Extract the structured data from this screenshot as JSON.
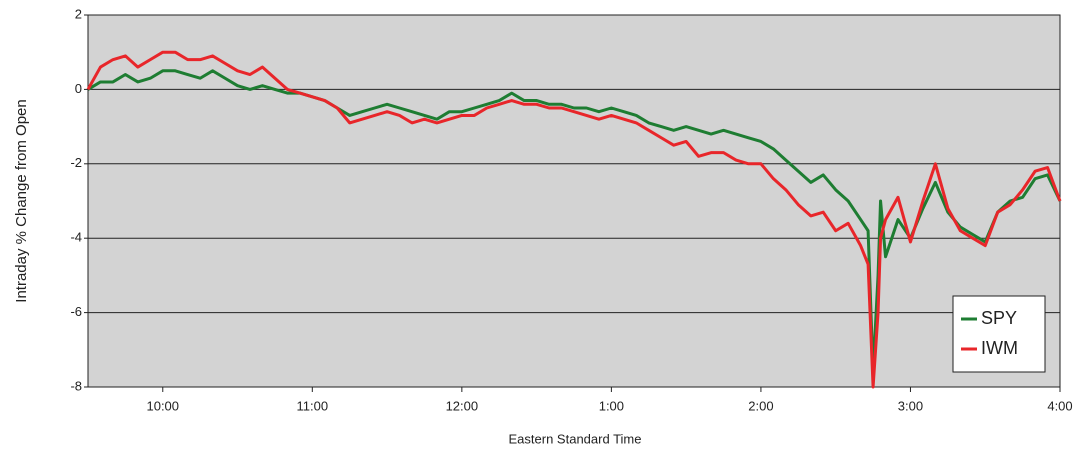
{
  "chart_data": {
    "type": "line",
    "xlabel": "Eastern Standard Time",
    "ylabel": "Intraday % Change from Open",
    "x": [
      570,
      575,
      580,
      585,
      590,
      595,
      600,
      605,
      610,
      615,
      620,
      625,
      630,
      635,
      640,
      645,
      650,
      655,
      660,
      665,
      670,
      675,
      680,
      685,
      690,
      695,
      700,
      705,
      710,
      715,
      720,
      725,
      730,
      735,
      740,
      745,
      750,
      755,
      760,
      765,
      770,
      775,
      780,
      785,
      790,
      795,
      800,
      805,
      810,
      815,
      820,
      825,
      830,
      835,
      840,
      845,
      850,
      855,
      860,
      865,
      870,
      875,
      880,
      883,
      885,
      887,
      888,
      890,
      895,
      900,
      905,
      910,
      915,
      920,
      925,
      930,
      935,
      940,
      945,
      950,
      955,
      960
    ],
    "series": [
      {
        "name": "SPY",
        "color": "#1e7d32",
        "values": [
          0,
          0.2,
          0.2,
          0.4,
          0.2,
          0.3,
          0.5,
          0.5,
          0.4,
          0.3,
          0.5,
          0.3,
          0.1,
          0.0,
          0.1,
          0.0,
          -0.1,
          -0.1,
          -0.2,
          -0.3,
          -0.5,
          -0.7,
          -0.6,
          -0.5,
          -0.4,
          -0.5,
          -0.6,
          -0.7,
          -0.8,
          -0.6,
          -0.6,
          -0.5,
          -0.4,
          -0.3,
          -0.1,
          -0.3,
          -0.3,
          -0.4,
          -0.4,
          -0.5,
          -0.5,
          -0.6,
          -0.5,
          -0.6,
          -0.7,
          -0.9,
          -1.0,
          -1.1,
          -1.0,
          -1.1,
          -1.2,
          -1.1,
          -1.2,
          -1.3,
          -1.4,
          -1.6,
          -1.9,
          -2.2,
          -2.5,
          -2.3,
          -2.7,
          -3.0,
          -3.5,
          -3.8,
          -7.6,
          -5.0,
          -3.0,
          -4.5,
          -3.5,
          -4.0,
          -3.2,
          -2.5,
          -3.3,
          -3.7,
          -3.9,
          -4.1,
          -3.3,
          -3.0,
          -2.9,
          -2.4,
          -2.3,
          -3.0
        ]
      },
      {
        "name": "IWM",
        "color": "#e8262a",
        "values": [
          0,
          0.6,
          0.8,
          0.9,
          0.6,
          0.8,
          1.0,
          1.0,
          0.8,
          0.8,
          0.9,
          0.7,
          0.5,
          0.4,
          0.6,
          0.3,
          0.0,
          -0.1,
          -0.2,
          -0.3,
          -0.5,
          -0.9,
          -0.8,
          -0.7,
          -0.6,
          -0.7,
          -0.9,
          -0.8,
          -0.9,
          -0.8,
          -0.7,
          -0.7,
          -0.5,
          -0.4,
          -0.3,
          -0.4,
          -0.4,
          -0.5,
          -0.5,
          -0.6,
          -0.7,
          -0.8,
          -0.7,
          -0.8,
          -0.9,
          -1.1,
          -1.3,
          -1.5,
          -1.4,
          -1.8,
          -1.7,
          -1.7,
          -1.9,
          -2.0,
          -2.0,
          -2.4,
          -2.7,
          -3.1,
          -3.4,
          -3.3,
          -3.8,
          -3.6,
          -4.2,
          -4.7,
          -8.0,
          -6.0,
          -4.0,
          -3.5,
          -2.9,
          -4.1,
          -3.0,
          -2.0,
          -3.2,
          -3.8,
          -4.0,
          -4.2,
          -3.3,
          -3.1,
          -2.7,
          -2.2,
          -2.1,
          -3.0
        ]
      }
    ],
    "xlim": [
      570,
      960
    ],
    "xticks": [
      {
        "value": 600,
        "label": "10:00"
      },
      {
        "value": 660,
        "label": "11:00"
      },
      {
        "value": 720,
        "label": "12:00"
      },
      {
        "value": 780,
        "label": "1:00"
      },
      {
        "value": 840,
        "label": "2:00"
      },
      {
        "value": 900,
        "label": "3:00"
      },
      {
        "value": 960,
        "label": "4:00"
      }
    ],
    "ylim": [
      -8,
      2
    ],
    "yticks": [
      -8,
      -6,
      -4,
      -2,
      0,
      2
    ],
    "grid": true,
    "legend": "lower right"
  }
}
